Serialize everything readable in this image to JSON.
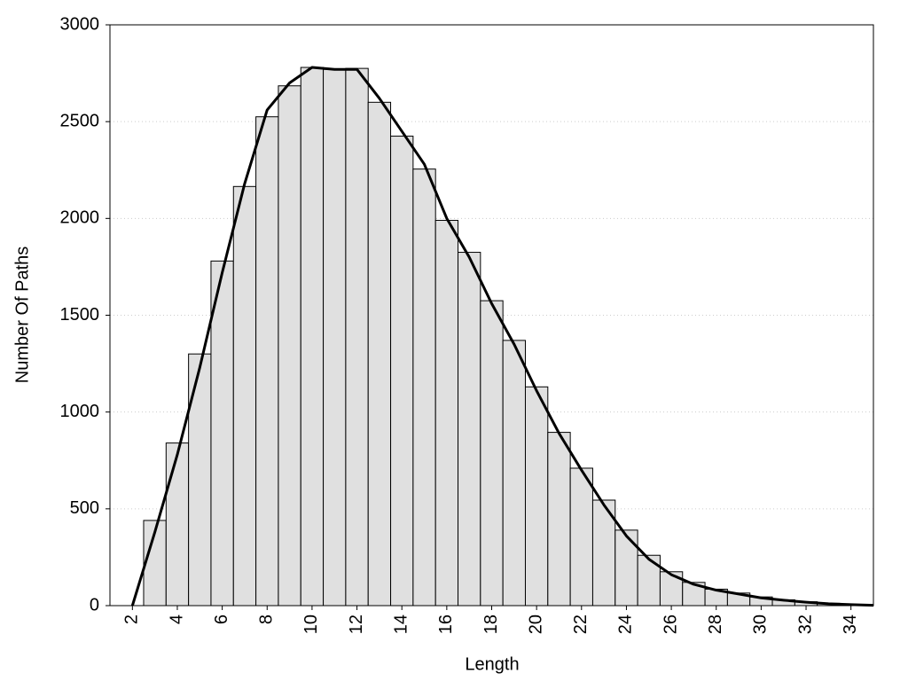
{
  "chart_data": {
    "type": "histogram",
    "xlabel": "Length",
    "ylabel": "Number Of Paths",
    "bins": [
      2.5,
      3.5,
      4.5,
      5.5,
      6.5,
      7.5,
      8.5,
      9.5,
      10.5,
      11.5,
      12.5,
      13.5,
      14.5,
      15.5,
      16.5,
      17.5,
      18.5,
      19.5,
      20.5,
      21.5,
      22.5,
      23.5,
      24.5,
      25.5,
      26.5,
      27.5,
      28.5,
      29.5,
      30.5,
      31.5,
      32.5,
      33.5,
      34.5
    ],
    "counts": [
      440,
      840,
      1300,
      1780,
      2165,
      2525,
      2685,
      2780,
      2770,
      2775,
      2600,
      2425,
      2255,
      1990,
      1825,
      1575,
      1370,
      1130,
      895,
      710,
      545,
      390,
      260,
      175,
      120,
      85,
      65,
      45,
      30,
      20,
      12,
      6
    ],
    "bar_color": "#e0e0e0",
    "line": {
      "color": "#000000",
      "x": [
        2,
        3,
        4,
        5,
        6,
        7,
        8,
        9,
        10,
        11,
        12,
        13,
        14,
        15,
        16,
        17,
        18,
        19,
        20,
        21,
        22,
        23,
        24,
        25,
        26,
        27,
        28,
        29,
        30,
        31,
        32,
        33,
        34,
        35
      ],
      "values": [
        0,
        380,
        780,
        1230,
        1720,
        2180,
        2560,
        2700,
        2780,
        2770,
        2770,
        2620,
        2450,
        2280,
        2000,
        1800,
        1560,
        1350,
        1110,
        890,
        700,
        520,
        360,
        240,
        160,
        110,
        80,
        60,
        40,
        28,
        18,
        10,
        5,
        2
      ]
    },
    "xlim": [
      1,
      35
    ],
    "xticks": [
      2,
      4,
      6,
      8,
      10,
      12,
      14,
      16,
      18,
      20,
      22,
      24,
      26,
      28,
      30,
      32,
      34
    ],
    "ylim": [
      0,
      3000
    ],
    "yticks": [
      0,
      500,
      1000,
      1500,
      2000,
      2500,
      3000
    ],
    "grid": true
  }
}
